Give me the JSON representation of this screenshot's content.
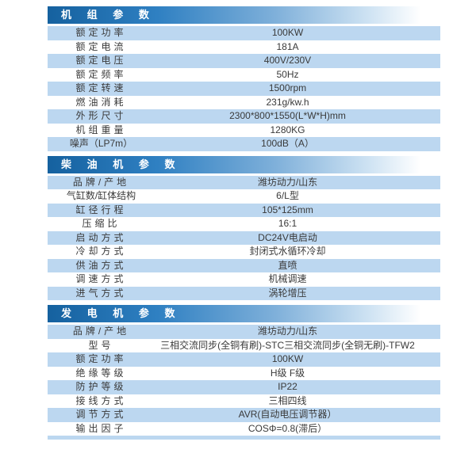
{
  "colors": {
    "header_blue": "#15619f",
    "header_mid": "#2f80c2",
    "row_blue": "#bcd7f0",
    "text": "#3a3a3a"
  },
  "sections": [
    {
      "title": "机 组 参 数",
      "rows": [
        {
          "label": "额定功率",
          "value": "100KW"
        },
        {
          "label": "额定电流",
          "value": "181A"
        },
        {
          "label": "额定电压",
          "value": "400V/230V"
        },
        {
          "label": "额定频率",
          "value": "50Hz"
        },
        {
          "label": "额定转速",
          "value": "1500rpm"
        },
        {
          "label": "燃油消耗",
          "value": "231g/kw.h"
        },
        {
          "label": "外形尺寸",
          "value": "2300*800*1550(L*W*H)mm"
        },
        {
          "label": "机组重量",
          "value": "1280KG"
        },
        {
          "label": "噪声（LP7m）",
          "value": "100dB（A）"
        }
      ],
      "trailing_strip": false
    },
    {
      "title": "柴 油 机 参 数",
      "rows": [
        {
          "label": "品牌/产地",
          "value": "潍坊动力/山东"
        },
        {
          "label": "气缸数/缸体结构",
          "value": "6/L型"
        },
        {
          "label": "缸径行程",
          "value": "105*125mm"
        },
        {
          "label": "压缩比",
          "value": "16:1"
        },
        {
          "label": "启动方式",
          "value": "DC24V电启动"
        },
        {
          "label": "冷却方式",
          "value": "封闭式水循环冷却"
        },
        {
          "label": "供油方式",
          "value": "直喷"
        },
        {
          "label": "调速方式",
          "value": "机械调速"
        },
        {
          "label": "进气方式",
          "value": "涡轮增压"
        }
      ],
      "trailing_strip": false
    },
    {
      "title": "发 电 机 参 数",
      "rows": [
        {
          "label": "品牌/产地",
          "value": "潍坊动力/山东"
        },
        {
          "label": "型号",
          "value": "三相交流同步(全铜有刷)-STC三相交流同步(全铜无刷)-TFW2"
        },
        {
          "label": "额定功率",
          "value": "100KW"
        },
        {
          "label": "绝缘等级",
          "value": "H级 F级"
        },
        {
          "label": "防护等级",
          "value": "IP22"
        },
        {
          "label": "接线方式",
          "value": "三相四线"
        },
        {
          "label": "调节方式",
          "value": "AVR(自动电压调节器）"
        },
        {
          "label": "输出因子",
          "value": "COSΦ=0.8(滞后）"
        }
      ],
      "trailing_strip": true
    }
  ]
}
